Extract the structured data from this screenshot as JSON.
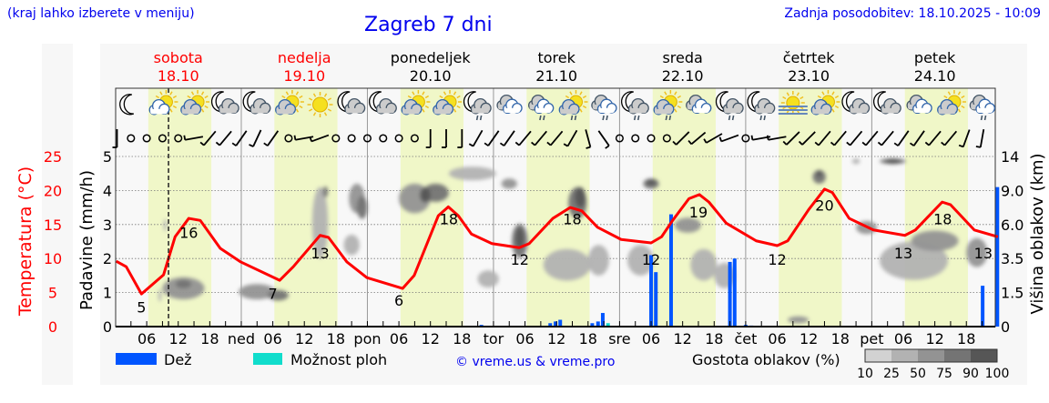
{
  "header": {
    "hint": "(kraj lahko izberete v meniju)",
    "title": "Zagreb 7 dni",
    "updated": "Zadnja posodobitev: 18.10.2025 - 10:09"
  },
  "colors": {
    "temperature": "#ff0000",
    "rain": "#0055ff",
    "showers": "#11ddcc",
    "daylight": "#f0f7c8",
    "night": "#f8f8f8",
    "weekend": "#ff0000",
    "link": "#0000ee"
  },
  "chart_data": {
    "type": "line",
    "days": [
      {
        "name": "sobota",
        "date": "18.10",
        "weekend": true,
        "abbr": ""
      },
      {
        "name": "nedelja",
        "date": "19.10",
        "weekend": true,
        "abbr": "ned"
      },
      {
        "name": "ponedeljek",
        "date": "20.10",
        "weekend": false,
        "abbr": "pon"
      },
      {
        "name": "torek",
        "date": "21.10",
        "weekend": false,
        "abbr": "tor"
      },
      {
        "name": "sreda",
        "date": "22.10",
        "weekend": false,
        "abbr": "sre"
      },
      {
        "name": "četrtek",
        "date": "23.10",
        "weekend": false,
        "abbr": "čet"
      },
      {
        "name": "petek",
        "date": "24.10",
        "weekend": false,
        "abbr": "pet"
      }
    ],
    "hour_ticks": [
      "06",
      "12",
      "18"
    ],
    "daylight_hours": [
      6.3,
      18.3
    ],
    "current_time_hour": 10.15,
    "axes": {
      "temperature": {
        "label": "Temperatura (°C)",
        "ticks": [
          "25",
          "20",
          "15",
          "10",
          "5",
          "0"
        ],
        "range": [
          0,
          25
        ]
      },
      "precipitation": {
        "label": "Padavine (mm/h)",
        "ticks": [
          "5",
          "4",
          "3",
          "2",
          "1",
          "0"
        ],
        "range": [
          0,
          5
        ]
      },
      "cloud_height": {
        "label": "Višina oblakov (km)",
        "ticks": [
          "14",
          "9.0",
          "6.0",
          "3.5",
          "1.5",
          "0"
        ],
        "values": [
          14,
          9,
          6,
          3.5,
          1.5,
          0
        ]
      }
    },
    "grid": true,
    "temperature": [
      [
        0.2,
        9.6
      ],
      [
        2.1,
        8.8
      ],
      [
        5,
        4.8
      ],
      [
        9.2,
        7.6
      ],
      [
        11.4,
        13.2
      ],
      [
        14,
        15.9
      ],
      [
        16.2,
        15.6
      ],
      [
        20,
        11.5
      ],
      [
        23.9,
        9.5
      ],
      [
        31.3,
        6.8
      ],
      [
        33.9,
        8.8
      ],
      [
        39,
        13.4
      ],
      [
        40.6,
        13.1
      ],
      [
        44.1,
        9.5
      ],
      [
        47.9,
        7.2
      ],
      [
        54.7,
        5.6
      ],
      [
        56.9,
        7.5
      ],
      [
        61.5,
        16.3
      ],
      [
        63.4,
        17.6
      ],
      [
        65.3,
        16.3
      ],
      [
        67.8,
        13.6
      ],
      [
        71.7,
        12.2
      ],
      [
        76.9,
        11.6
      ],
      [
        78.8,
        12.2
      ],
      [
        83.3,
        15.9
      ],
      [
        86.6,
        17.5
      ],
      [
        88.8,
        17
      ],
      [
        91.8,
        14.6
      ],
      [
        96.3,
        12.8
      ],
      [
        102,
        12.3
      ],
      [
        104,
        13.2
      ],
      [
        106,
        15.5
      ],
      [
        109.2,
        18.8
      ],
      [
        111.2,
        19.4
      ],
      [
        113,
        18.3
      ],
      [
        116.3,
        15.2
      ],
      [
        122,
        12.6
      ],
      [
        126,
        11.9
      ],
      [
        128,
        12.6
      ],
      [
        132,
        17.2
      ],
      [
        135,
        20.2
      ],
      [
        136.5,
        19.7
      ],
      [
        139.7,
        15.9
      ],
      [
        144.3,
        14.2
      ],
      [
        150.3,
        13.4
      ],
      [
        152.3,
        14.2
      ],
      [
        157.4,
        18.3
      ],
      [
        159,
        17.9
      ],
      [
        163.5,
        14.2
      ],
      [
        168,
        13.2
      ]
    ],
    "temperature_labels": [
      [
        5,
        "5",
        5
      ],
      [
        14,
        "16",
        16
      ],
      [
        30,
        "7",
        7
      ],
      [
        39,
        "13",
        13
      ],
      [
        54,
        "6",
        6
      ],
      [
        63.5,
        "18",
        18
      ],
      [
        77,
        "12",
        12
      ],
      [
        87,
        "18",
        18
      ],
      [
        102,
        "12",
        12
      ],
      [
        111,
        "19",
        19
      ],
      [
        126,
        "12",
        12
      ],
      [
        135,
        "20",
        20
      ],
      [
        150,
        "13",
        13
      ],
      [
        157.5,
        "18",
        18
      ],
      [
        168,
        "13",
        13
      ]
    ],
    "rain": [
      [
        69.7,
        0.05
      ],
      [
        82.8,
        0.1
      ],
      [
        83.8,
        0.15
      ],
      [
        84.7,
        0.2
      ],
      [
        90.8,
        0.1
      ],
      [
        91.9,
        0.15
      ],
      [
        92.8,
        0.4
      ],
      [
        102,
        2.1
      ],
      [
        102.9,
        1.6
      ],
      [
        105.8,
        3.3
      ],
      [
        117,
        1.9
      ],
      [
        117.9,
        2.0
      ],
      [
        120,
        0.05
      ],
      [
        121.1,
        0.03
      ],
      [
        165.1,
        1.2
      ],
      [
        167.9,
        4.1
      ]
    ],
    "showers": [
      [
        93.8,
        0.1
      ]
    ],
    "clouds": [
      {
        "h": 13,
        "alt": 1.8,
        "dh": 8,
        "dalt": 1.2,
        "d": 50
      },
      {
        "h": 13,
        "alt": 2.0,
        "dh": 3,
        "dalt": 0.5,
        "d": 75
      },
      {
        "h": 27,
        "alt": 1.6,
        "dh": 7,
        "dalt": 0.8,
        "d": 50
      },
      {
        "h": 31,
        "alt": 1.4,
        "dh": 4,
        "dalt": 0.5,
        "d": 75
      },
      {
        "h": 8.5,
        "alt": 1.4,
        "dh": 0.6,
        "dalt": 0.6,
        "d": 25
      },
      {
        "h": 9.5,
        "alt": 6,
        "dh": 0.6,
        "dalt": 1,
        "d": 25
      },
      {
        "h": 39,
        "alt": 6.5,
        "dh": 3,
        "dalt": 6,
        "d": 25
      },
      {
        "h": 40,
        "alt": 9,
        "dh": 1,
        "dalt": 1.2,
        "d": 75
      },
      {
        "h": 46,
        "alt": 8.5,
        "dh": 3,
        "dalt": 3,
        "d": 60
      },
      {
        "h": 47,
        "alt": 7.5,
        "dh": 2,
        "dalt": 2,
        "d": 85
      },
      {
        "h": 45,
        "alt": 4.5,
        "dh": 3,
        "dalt": 1.5,
        "d": 25
      },
      {
        "h": 57,
        "alt": 8.5,
        "dh": 6,
        "dalt": 3,
        "d": 50
      },
      {
        "h": 61,
        "alt": 9,
        "dh": 5,
        "dalt": 2,
        "d": 75
      },
      {
        "h": 59,
        "alt": 8.7,
        "dh": 2,
        "dalt": 1.5,
        "d": 90
      },
      {
        "h": 68,
        "alt": 11.5,
        "dh": 9,
        "dalt": 2,
        "d": 25
      },
      {
        "h": 75,
        "alt": 10,
        "dh": 3,
        "dalt": 1.5,
        "d": 50
      },
      {
        "h": 71,
        "alt": 2.3,
        "dh": 4,
        "dalt": 1,
        "d": 25
      },
      {
        "h": 77,
        "alt": 4.8,
        "dh": 3,
        "dalt": 2.5,
        "d": 75
      },
      {
        "h": 77,
        "alt": 5,
        "dh": 1.5,
        "dalt": 1.5,
        "d": 90
      },
      {
        "h": 86,
        "alt": 3.2,
        "dh": 9,
        "dalt": 2,
        "d": 40
      },
      {
        "h": 88,
        "alt": 8,
        "dh": 3.5,
        "dalt": 3,
        "d": 75
      },
      {
        "h": 88.5,
        "alt": 8.5,
        "dh": 2,
        "dalt": 2,
        "d": 90
      },
      {
        "h": 92,
        "alt": 3.5,
        "dh": 4,
        "dalt": 2,
        "d": 40
      },
      {
        "h": 100,
        "alt": 3.5,
        "dh": 5,
        "dalt": 2,
        "d": 40
      },
      {
        "h": 102,
        "alt": 10,
        "dh": 3,
        "dalt": 1.5,
        "d": 75
      },
      {
        "h": 102,
        "alt": 10.2,
        "dh": 1.8,
        "dalt": 0.8,
        "d": 90
      },
      {
        "h": 109,
        "alt": 6,
        "dh": 5,
        "dalt": 1.2,
        "d": 50
      },
      {
        "h": 112,
        "alt": 3.2,
        "dh": 5,
        "dalt": 2,
        "d": 25
      },
      {
        "h": 116,
        "alt": 2.5,
        "dh": 4,
        "dalt": 1.5,
        "d": 40
      },
      {
        "h": 130,
        "alt": 0.3,
        "dh": 4,
        "dalt": 0.3,
        "d": 50
      },
      {
        "h": 134,
        "alt": 11,
        "dh": 2.5,
        "dalt": 2,
        "d": 75
      },
      {
        "h": 134,
        "alt": 11.5,
        "dh": 1,
        "dalt": 1,
        "d": 90
      },
      {
        "h": 141,
        "alt": 13.3,
        "dh": 1.5,
        "dalt": 0.6,
        "d": 25
      },
      {
        "h": 148,
        "alt": 13.3,
        "dh": 5,
        "dalt": 0.7,
        "d": 75
      },
      {
        "h": 148,
        "alt": 13.3,
        "dh": 3,
        "dalt": 0.4,
        "d": 90
      },
      {
        "h": 143,
        "alt": 5.8,
        "dh": 4,
        "dalt": 1,
        "d": 50
      },
      {
        "h": 152,
        "alt": 3.5,
        "dh": 13,
        "dalt": 2.5,
        "d": 40
      },
      {
        "h": 156,
        "alt": 4.8,
        "dh": 9,
        "dalt": 1.5,
        "d": 60
      },
      {
        "h": 164,
        "alt": 4,
        "dh": 4,
        "dalt": 2,
        "d": 60
      }
    ],
    "icons": [
      "moon",
      "sun-cloud",
      "sun-cloud",
      "moon-cloud",
      "moon-cloud",
      "sun-cloud",
      "sun",
      "moon-cloud",
      "moon-cloud",
      "sun-cloud",
      "sun-cloud",
      "moon-cloud-rain",
      "cloud",
      "cloud-rain",
      "sun-cloud-rain",
      "cloud-rain",
      "moon-cloud-rain",
      "sun-cloud-rain",
      "cloud",
      "moon-cloud-rain",
      "moon-cloud-rain",
      "sun-fog",
      "sun-cloud",
      "moon-cloud",
      "moon-cloud",
      "cloud",
      "sun-cloud",
      "cloud-rain"
    ],
    "wind": [
      0,
      "calm",
      "calm",
      "calm",
      "calm",
      80,
      40,
      40,
      35,
      25,
      35,
      "calm",
      80,
      70,
      "calm",
      "calm",
      "calm",
      "calm",
      "calm",
      "calm",
      0,
      0,
      0,
      30,
      35,
      35,
      40,
      40,
      40,
      30,
      -15,
      -35,
      "calm",
      "calm",
      "calm",
      "calm",
      45,
      50,
      60,
      70,
      "calm",
      80,
      80,
      45,
      45,
      40,
      40,
      40,
      40,
      40,
      35,
      35,
      40,
      40,
      20,
      10
    ]
  },
  "legend": {
    "rain": "Dež",
    "showers": "Možnost ploh",
    "copyright": "© vreme.us & vreme.pro",
    "cloud_density": "Gostota oblakov (%)",
    "density_levels": [
      "10",
      "25",
      "50",
      "75",
      "90",
      "100"
    ],
    "density_colors": [
      "#d2d2d2",
      "#b2b2b2",
      "#939393",
      "#747474",
      "#565656"
    ]
  }
}
